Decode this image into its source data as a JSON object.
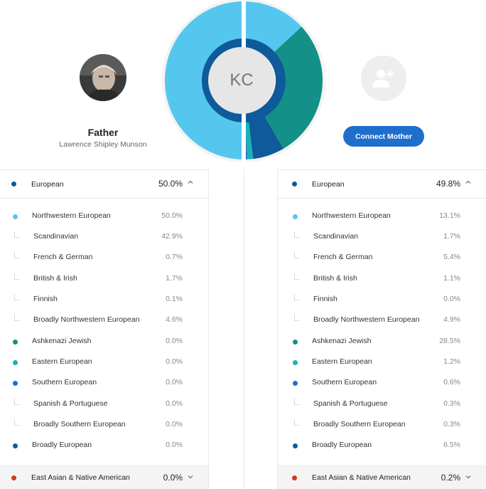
{
  "colors": {
    "european": "#0e5a9a",
    "nw_european": "#55c7ef",
    "ashkenazi": "#139088",
    "eastern": "#17b3b3",
    "southern": "#1e6fcd",
    "broadly_european": "#0e5a9a",
    "east_asian": "#d03a1c",
    "button": "#1e6fcd"
  },
  "father": {
    "title": "Father",
    "name": "Lawrence Shipley Munson",
    "avatar_icon": "father-photo"
  },
  "mother": {
    "avatar_icon": "add-person-icon",
    "connect_label": "Connect Mother"
  },
  "center": {
    "initials": "KC"
  },
  "chart_data": {
    "type": "pie",
    "title": "",
    "left_half": {
      "description_source": "father",
      "slices": [
        {
          "category": "Northwestern European",
          "value": 50.0
        }
      ]
    },
    "right_half": {
      "description_source": "mother",
      "slices": [
        {
          "category": "Northwestern European",
          "value": 13.1
        },
        {
          "category": "Ashkenazi Jewish",
          "value": 28.5
        },
        {
          "category": "Broadly European",
          "value": 6.5
        },
        {
          "category": "Eastern European",
          "value": 1.2
        },
        {
          "category": "Southern European",
          "value": 0.6
        }
      ]
    }
  },
  "left": {
    "header": {
      "label": "European",
      "value": "50.0%"
    },
    "rows": [
      {
        "label": "Northwestern European",
        "value": "50.0%",
        "kind": "dot",
        "color": "#55c7ef"
      },
      {
        "label": "Scandinavian",
        "value": "42.9%",
        "kind": "sub"
      },
      {
        "label": "French & German",
        "value": "0.7%",
        "kind": "sub"
      },
      {
        "label": "British & Irish",
        "value": "1.7%",
        "kind": "sub"
      },
      {
        "label": "Finnish",
        "value": "0.1%",
        "kind": "sub"
      },
      {
        "label": "Broadly Northwestern European",
        "value": "4.6%",
        "kind": "sub"
      },
      {
        "label": "Ashkenazi Jewish",
        "value": "0.0%",
        "kind": "dot",
        "color": "#139088"
      },
      {
        "label": "Eastern European",
        "value": "0.0%",
        "kind": "dot",
        "color": "#17b3b3"
      },
      {
        "label": "Southern European",
        "value": "0.0%",
        "kind": "dot",
        "color": "#1e6fcd"
      },
      {
        "label": "Spanish & Portuguese",
        "value": "0.0%",
        "kind": "sub"
      },
      {
        "label": "Broadly Southern European",
        "value": "0.0%",
        "kind": "sub"
      },
      {
        "label": "Broadly European",
        "value": "0.0%",
        "kind": "dot",
        "color": "#0e5a9a"
      }
    ],
    "footer": {
      "label": "East Asian & Native American",
      "value": "0.0%"
    }
  },
  "right": {
    "header": {
      "label": "European",
      "value": "49.8%"
    },
    "rows": [
      {
        "label": "Northwestern European",
        "value": "13.1%",
        "kind": "dot",
        "color": "#55c7ef"
      },
      {
        "label": "Scandinavian",
        "value": "1.7%",
        "kind": "sub"
      },
      {
        "label": "French & German",
        "value": "5.4%",
        "kind": "sub"
      },
      {
        "label": "British & Irish",
        "value": "1.1%",
        "kind": "sub"
      },
      {
        "label": "Finnish",
        "value": "0.0%",
        "kind": "sub"
      },
      {
        "label": "Broadly Northwestern European",
        "value": "4.9%",
        "kind": "sub"
      },
      {
        "label": "Ashkenazi Jewish",
        "value": "28.5%",
        "kind": "dot",
        "color": "#139088"
      },
      {
        "label": "Eastern European",
        "value": "1.2%",
        "kind": "dot",
        "color": "#17b3b3"
      },
      {
        "label": "Southern European",
        "value": "0.6%",
        "kind": "dot",
        "color": "#1e6fcd"
      },
      {
        "label": "Spanish & Portuguese",
        "value": "0.3%",
        "kind": "sub"
      },
      {
        "label": "Broadly Southern European",
        "value": "0.3%",
        "kind": "sub"
      },
      {
        "label": "Broadly European",
        "value": "6.5%",
        "kind": "dot",
        "color": "#0e5a9a"
      }
    ],
    "footer": {
      "label": "East Asian & Native American",
      "value": "0.2%"
    }
  }
}
